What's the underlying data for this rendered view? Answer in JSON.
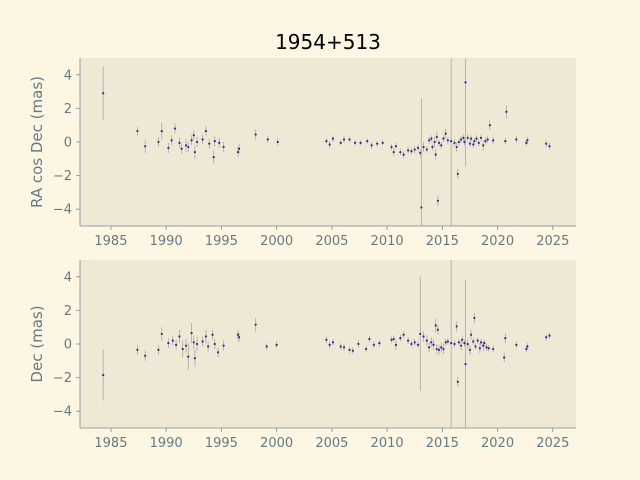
{
  "chart_data": [
    {
      "type": "scatter",
      "title": "1954+513",
      "xlabel": "",
      "ylabel": "RA cos Dec (mas)",
      "xlim": [
        1982.2,
        2027.1
      ],
      "ylim": [
        -5.0,
        5.0
      ],
      "xticks": [
        1985,
        1990,
        1995,
        2000,
        2005,
        2010,
        2015,
        2020,
        2025
      ],
      "yticks": [
        -4,
        -2,
        0,
        2,
        4
      ],
      "grid": false,
      "series": [
        {
          "marker_color": "#2b2b9a",
          "errorbar_color": "#b0a89a",
          "points": [
            [
              1984.3,
              2.9,
              1.6
            ],
            [
              1987.4,
              0.65,
              0.25
            ],
            [
              1988.1,
              -0.25,
              0.4
            ],
            [
              1989.3,
              0.0,
              0.3
            ],
            [
              1989.6,
              0.65,
              0.5
            ],
            [
              1990.2,
              -0.35,
              0.3
            ],
            [
              1990.5,
              0.1,
              0.3
            ],
            [
              1990.8,
              0.8,
              0.3
            ],
            [
              1991.2,
              -0.05,
              0.3
            ],
            [
              1991.4,
              -0.4,
              0.3
            ],
            [
              1991.8,
              -0.2,
              0.4
            ],
            [
              1992.0,
              -0.3,
              0.3
            ],
            [
              1992.3,
              0.1,
              0.3
            ],
            [
              1992.5,
              0.4,
              0.3
            ],
            [
              1992.6,
              -0.6,
              0.4
            ],
            [
              1992.8,
              0.0,
              0.3
            ],
            [
              1993.3,
              0.15,
              0.3
            ],
            [
              1993.6,
              0.65,
              0.3
            ],
            [
              1993.9,
              -0.1,
              0.3
            ],
            [
              1994.3,
              -0.9,
              0.4
            ],
            [
              1994.4,
              0.05,
              0.3
            ],
            [
              1994.8,
              -0.05,
              0.3
            ],
            [
              1995.2,
              -0.3,
              0.3
            ],
            [
              1996.5,
              -0.6,
              0.3
            ],
            [
              1996.6,
              -0.4,
              0.3
            ],
            [
              1998.1,
              0.45,
              0.3
            ],
            [
              1999.2,
              0.15,
              0.2
            ],
            [
              2000.1,
              0.0,
              0.2
            ],
            [
              2004.5,
              0.05,
              0.15
            ],
            [
              2004.8,
              -0.15,
              0.2
            ],
            [
              2005.1,
              0.2,
              0.2
            ],
            [
              2005.8,
              -0.05,
              0.15
            ],
            [
              2006.1,
              0.15,
              0.2
            ],
            [
              2006.6,
              0.15,
              0.15
            ],
            [
              2007.1,
              -0.05,
              0.15
            ],
            [
              2007.6,
              -0.05,
              0.15
            ],
            [
              2008.2,
              0.05,
              0.15
            ],
            [
              2008.6,
              -0.2,
              0.2
            ],
            [
              2009.1,
              -0.1,
              0.15
            ],
            [
              2009.6,
              -0.05,
              0.15
            ],
            [
              2010.4,
              -0.3,
              0.2
            ],
            [
              2010.6,
              -0.6,
              0.2
            ],
            [
              2010.8,
              -0.25,
              0.2
            ],
            [
              2011.2,
              -0.6,
              0.2
            ],
            [
              2011.5,
              -0.75,
              0.2
            ],
            [
              2011.9,
              -0.5,
              0.2
            ],
            [
              2012.2,
              -0.55,
              0.2
            ],
            [
              2012.5,
              -0.45,
              0.2
            ],
            [
              2012.8,
              -0.35,
              0.2
            ],
            [
              2013.0,
              -0.65,
              0.2
            ],
            [
              2013.1,
              -3.9,
              6.5
            ],
            [
              2013.3,
              -0.3,
              0.3
            ],
            [
              2013.6,
              -0.45,
              0.2
            ],
            [
              2013.8,
              0.1,
              0.2
            ],
            [
              2014.0,
              0.2,
              0.2
            ],
            [
              2014.1,
              -0.3,
              0.2
            ],
            [
              2014.3,
              0.0,
              0.3
            ],
            [
              2014.4,
              -0.75,
              0.3
            ],
            [
              2014.5,
              0.3,
              0.3
            ],
            [
              2014.6,
              -3.5,
              0.3
            ],
            [
              2014.7,
              -0.05,
              0.2
            ],
            [
              2014.9,
              -0.2,
              0.2
            ],
            [
              2015.1,
              0.2,
              0.2
            ],
            [
              2015.3,
              0.5,
              0.3
            ],
            [
              2015.5,
              0.1,
              0.2
            ],
            [
              2015.8,
              0.05,
              8.0
            ],
            [
              2016.1,
              -0.05,
              0.2
            ],
            [
              2016.3,
              -0.3,
              0.3
            ],
            [
              2016.4,
              -1.9,
              0.3
            ],
            [
              2016.5,
              0.0,
              0.2
            ],
            [
              2016.7,
              0.15,
              0.2
            ],
            [
              2016.9,
              0.25,
              0.2
            ],
            [
              2017.0,
              0.0,
              0.2
            ],
            [
              2017.1,
              3.55,
              5.0
            ],
            [
              2017.3,
              0.25,
              0.2
            ],
            [
              2017.5,
              -0.1,
              0.2
            ],
            [
              2017.6,
              0.2,
              0.2
            ],
            [
              2017.8,
              -0.15,
              0.2
            ],
            [
              2017.9,
              0.05,
              0.2
            ],
            [
              2018.1,
              0.2,
              0.2
            ],
            [
              2018.3,
              -0.05,
              0.2
            ],
            [
              2018.5,
              0.25,
              0.2
            ],
            [
              2018.7,
              -0.2,
              0.3
            ],
            [
              2018.9,
              0.05,
              0.2
            ],
            [
              2019.1,
              0.15,
              0.2
            ],
            [
              2019.3,
              1.0,
              0.3
            ],
            [
              2019.6,
              0.1,
              0.2
            ],
            [
              2020.7,
              0.05,
              0.2
            ],
            [
              2020.8,
              1.8,
              0.4
            ],
            [
              2021.7,
              0.15,
              0.2
            ],
            [
              2022.6,
              -0.05,
              0.2
            ],
            [
              2022.7,
              0.1,
              0.2
            ],
            [
              2024.4,
              -0.1,
              0.2
            ],
            [
              2024.7,
              -0.25,
              0.2
            ]
          ]
        }
      ]
    },
    {
      "type": "scatter",
      "title": "",
      "xlabel": "",
      "ylabel": "Dec (mas)",
      "xlim": [
        1982.2,
        2027.1
      ],
      "ylim": [
        -5.0,
        5.0
      ],
      "xticks": [
        1985,
        1990,
        1995,
        2000,
        2005,
        2010,
        2015,
        2020,
        2025
      ],
      "yticks": [
        -4,
        -2,
        0,
        2,
        4
      ],
      "grid": false,
      "series": [
        {
          "marker_color": "#2b2b9a",
          "errorbar_color": "#b0a89a",
          "points": [
            [
              1984.3,
              -1.85,
              1.5
            ],
            [
              1987.4,
              -0.35,
              0.3
            ],
            [
              1988.1,
              -0.7,
              0.3
            ],
            [
              1989.3,
              -0.35,
              0.3
            ],
            [
              1989.6,
              0.6,
              0.4
            ],
            [
              1990.2,
              0.05,
              0.3
            ],
            [
              1990.6,
              0.2,
              0.3
            ],
            [
              1990.9,
              -0.05,
              0.3
            ],
            [
              1991.2,
              0.45,
              0.4
            ],
            [
              1991.5,
              -0.3,
              0.5
            ],
            [
              1991.8,
              -0.1,
              0.4
            ],
            [
              1992.0,
              -0.75,
              0.8
            ],
            [
              1992.3,
              0.65,
              0.6
            ],
            [
              1992.5,
              0.1,
              0.4
            ],
            [
              1992.6,
              -0.85,
              0.5
            ],
            [
              1992.8,
              0.0,
              0.4
            ],
            [
              1993.3,
              0.15,
              0.3
            ],
            [
              1993.6,
              0.45,
              0.4
            ],
            [
              1993.8,
              -0.15,
              0.3
            ],
            [
              1994.2,
              0.55,
              0.3
            ],
            [
              1994.4,
              0.0,
              0.3
            ],
            [
              1994.7,
              -0.5,
              0.3
            ],
            [
              1995.2,
              -0.1,
              0.3
            ],
            [
              1996.5,
              0.55,
              0.3
            ],
            [
              1996.6,
              0.4,
              0.3
            ],
            [
              1998.1,
              1.15,
              0.4
            ],
            [
              1999.1,
              -0.15,
              0.2
            ],
            [
              2000.0,
              -0.05,
              0.2
            ],
            [
              2004.5,
              0.25,
              0.2
            ],
            [
              2004.8,
              -0.05,
              0.2
            ],
            [
              2005.1,
              0.1,
              0.2
            ],
            [
              2005.8,
              -0.15,
              0.2
            ],
            [
              2006.1,
              -0.2,
              0.2
            ],
            [
              2006.6,
              -0.35,
              0.2
            ],
            [
              2006.9,
              -0.4,
              0.2
            ],
            [
              2007.4,
              0.0,
              0.2
            ],
            [
              2008.1,
              -0.3,
              0.2
            ],
            [
              2008.4,
              0.3,
              0.2
            ],
            [
              2008.8,
              -0.05,
              0.2
            ],
            [
              2009.3,
              0.05,
              0.2
            ],
            [
              2010.4,
              0.25,
              0.2
            ],
            [
              2010.6,
              0.3,
              0.2
            ],
            [
              2010.8,
              -0.05,
              0.3
            ],
            [
              2011.2,
              0.35,
              0.2
            ],
            [
              2011.5,
              0.55,
              0.2
            ],
            [
              2011.9,
              0.2,
              0.2
            ],
            [
              2012.2,
              0.0,
              0.2
            ],
            [
              2012.5,
              0.1,
              0.2
            ],
            [
              2012.8,
              -0.05,
              0.2
            ],
            [
              2013.0,
              0.6,
              3.4
            ],
            [
              2013.3,
              0.45,
              0.3
            ],
            [
              2013.6,
              0.2,
              0.3
            ],
            [
              2013.8,
              -0.2,
              0.3
            ],
            [
              2014.0,
              0.1,
              0.3
            ],
            [
              2014.2,
              -0.05,
              0.3
            ],
            [
              2014.4,
              1.1,
              0.4
            ],
            [
              2014.5,
              -0.3,
              0.3
            ],
            [
              2014.6,
              0.85,
              0.3
            ],
            [
              2014.7,
              -0.35,
              0.3
            ],
            [
              2014.9,
              -0.2,
              0.3
            ],
            [
              2015.1,
              -0.3,
              0.3
            ],
            [
              2015.3,
              0.1,
              0.2
            ],
            [
              2015.5,
              0.15,
              0.2
            ],
            [
              2015.8,
              0.05,
              8.0
            ],
            [
              2016.1,
              0.0,
              0.2
            ],
            [
              2016.3,
              1.05,
              0.3
            ],
            [
              2016.4,
              -2.25,
              0.3
            ],
            [
              2016.5,
              0.1,
              0.2
            ],
            [
              2016.7,
              -0.1,
              0.3
            ],
            [
              2016.8,
              0.25,
              0.2
            ],
            [
              2017.0,
              0.05,
              0.2
            ],
            [
              2017.1,
              -1.2,
              5.0
            ],
            [
              2017.3,
              0.0,
              0.3
            ],
            [
              2017.5,
              -0.35,
              0.3
            ],
            [
              2017.6,
              0.55,
              0.3
            ],
            [
              2017.8,
              0.15,
              0.2
            ],
            [
              2017.9,
              1.55,
              0.3
            ],
            [
              2018.0,
              -0.15,
              0.2
            ],
            [
              2018.2,
              0.2,
              0.2
            ],
            [
              2018.4,
              -0.25,
              0.3
            ],
            [
              2018.5,
              0.1,
              0.2
            ],
            [
              2018.7,
              -0.1,
              0.3
            ],
            [
              2018.8,
              0.05,
              0.2
            ],
            [
              2019.0,
              -0.2,
              0.2
            ],
            [
              2019.2,
              -0.25,
              0.2
            ],
            [
              2019.6,
              -0.3,
              0.2
            ],
            [
              2020.6,
              -0.8,
              0.3
            ],
            [
              2020.7,
              0.35,
              0.3
            ],
            [
              2021.7,
              -0.05,
              0.2
            ],
            [
              2022.6,
              -0.3,
              0.2
            ],
            [
              2022.7,
              -0.15,
              0.2
            ],
            [
              2024.4,
              0.4,
              0.2
            ],
            [
              2024.7,
              0.5,
              0.2
            ]
          ]
        }
      ]
    }
  ]
}
